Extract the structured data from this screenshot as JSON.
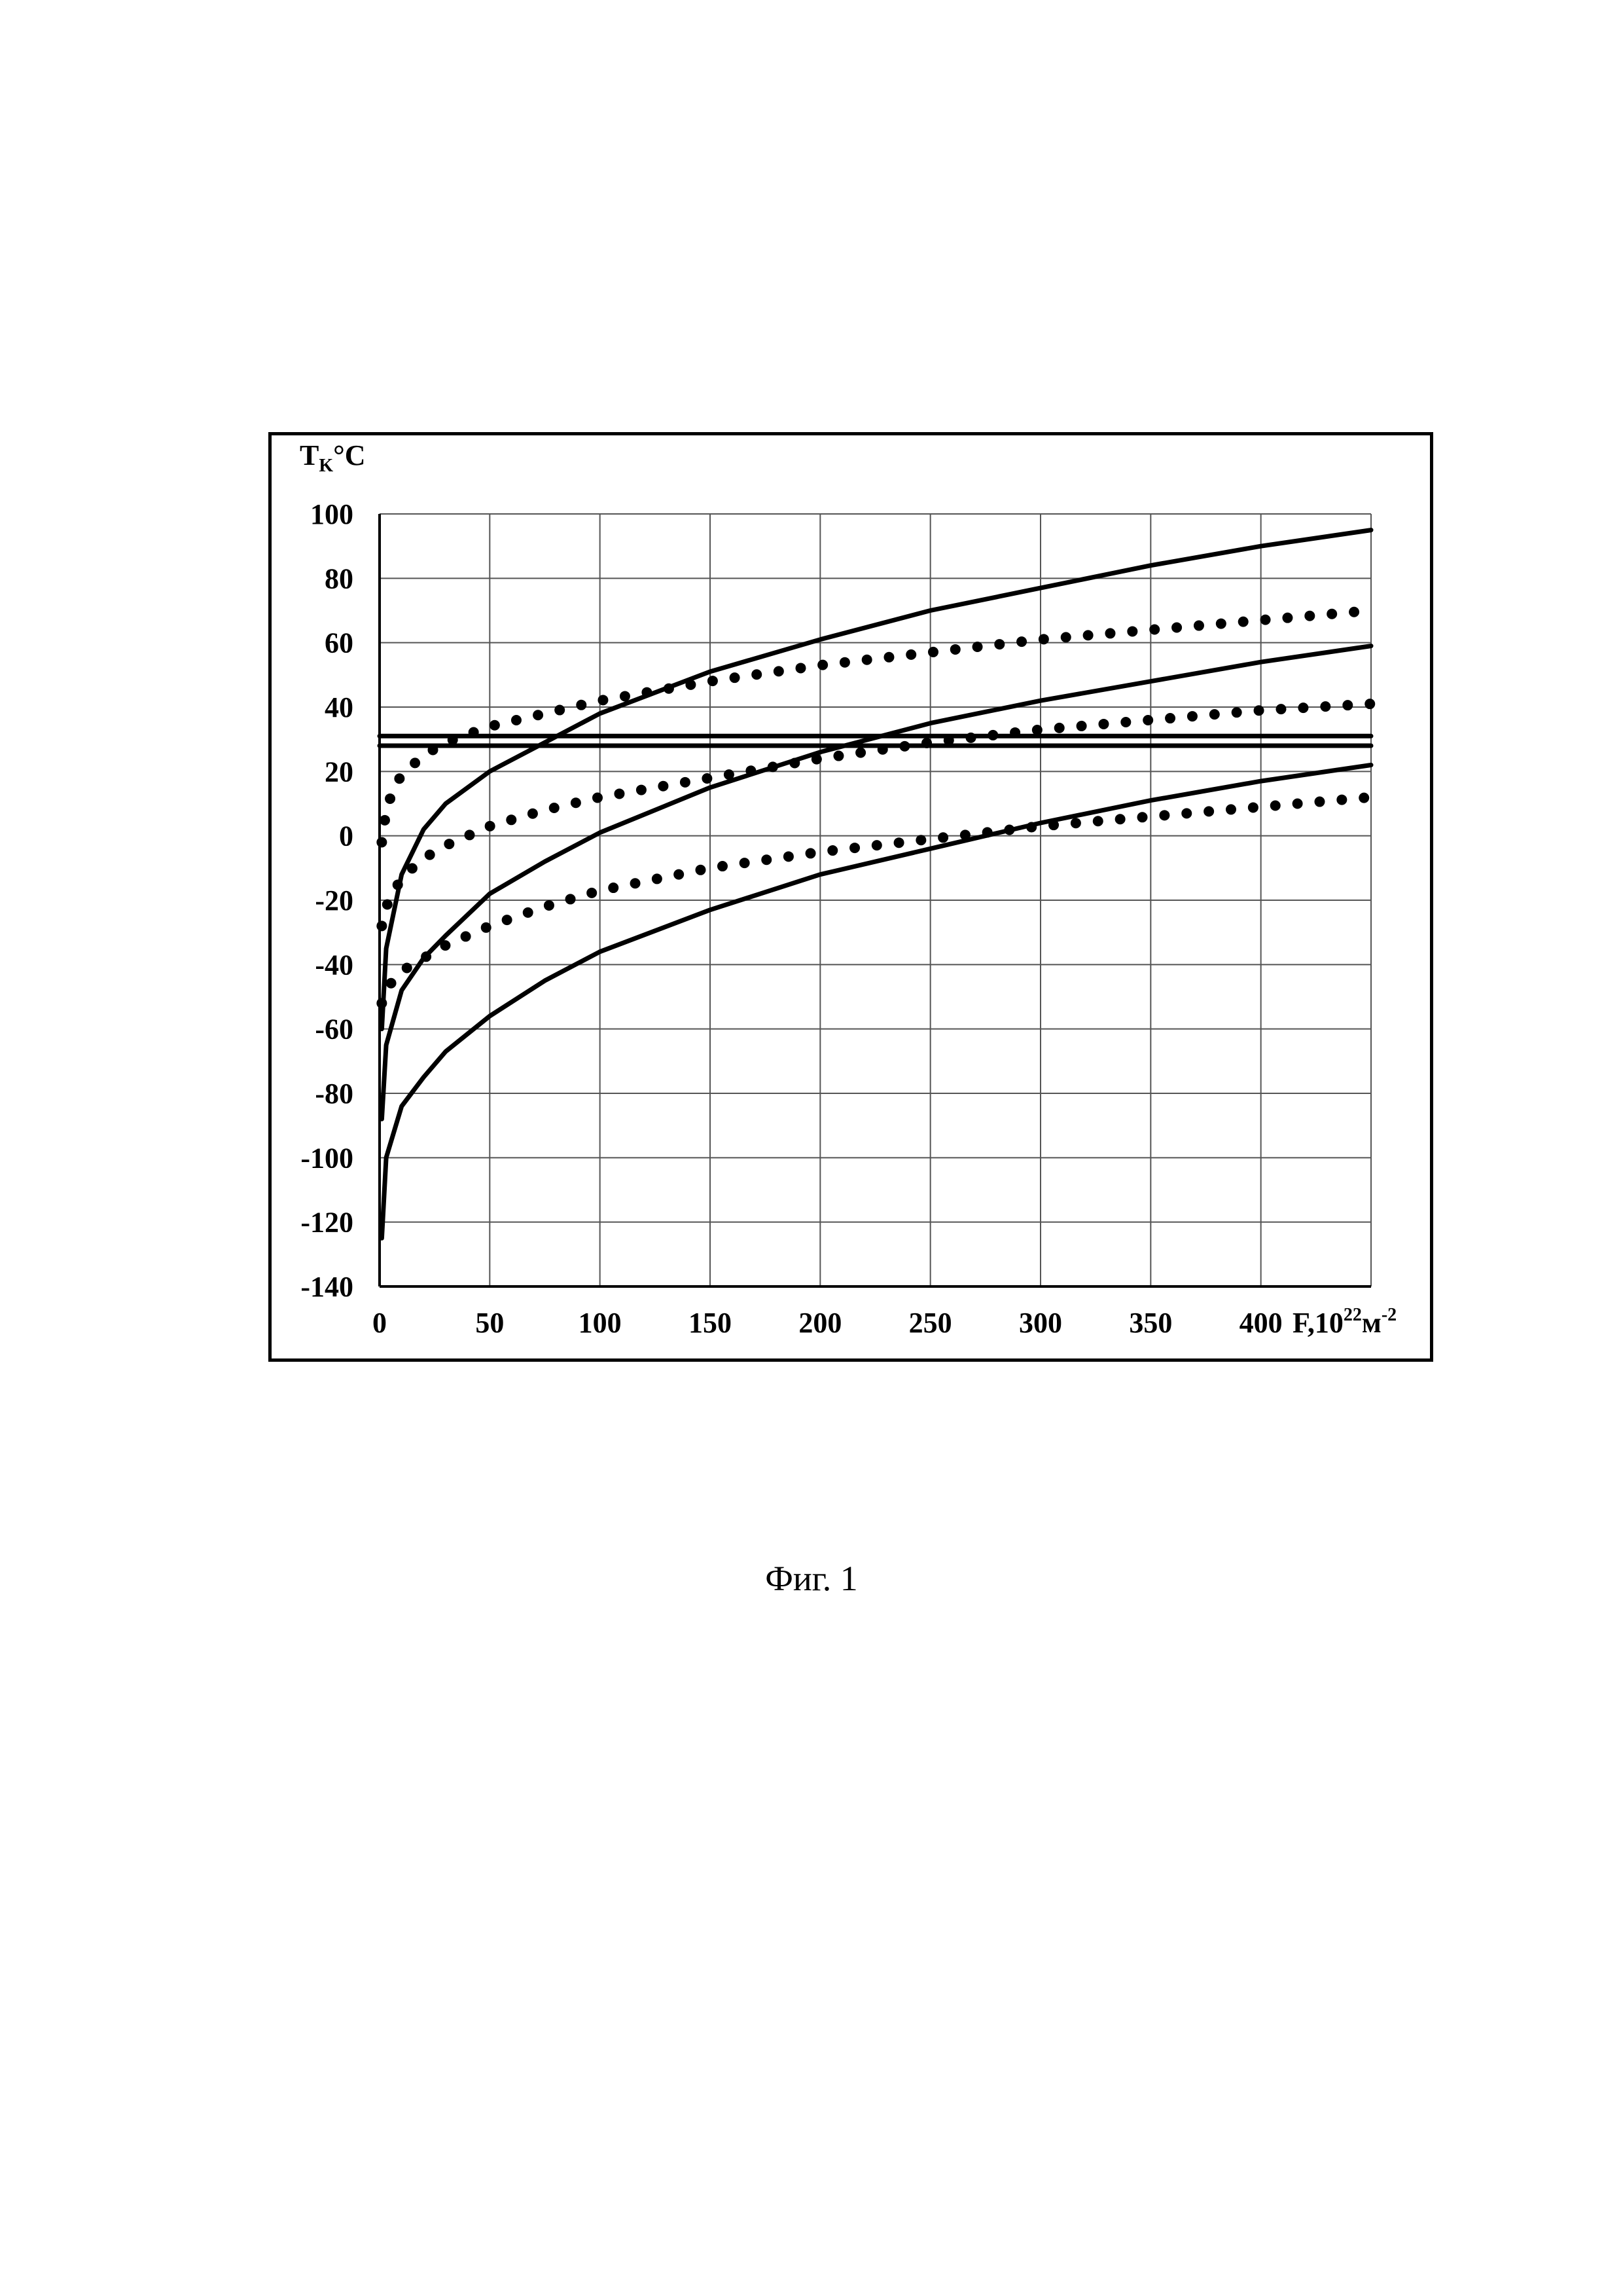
{
  "chart_data": {
    "type": "line",
    "ylabel": {
      "main": "T",
      "sub": "K",
      "suffix": "°C"
    },
    "xlabel": {
      "main": "F,10",
      "sup": "22",
      "unit": "м",
      "unit_sup": "-2"
    },
    "xlim": [
      0,
      450
    ],
    "ylim": [
      -140,
      100
    ],
    "xticks": [
      0,
      50,
      100,
      150,
      200,
      250,
      300,
      350,
      400
    ],
    "yticks": [
      100,
      80,
      60,
      40,
      20,
      0,
      -20,
      -40,
      -60,
      -80,
      -100,
      -120,
      -140
    ],
    "grid": true,
    "series": [
      {
        "style": "solid",
        "points": [
          [
            1,
            -60
          ],
          [
            3,
            -35
          ],
          [
            10,
            -12
          ],
          [
            20,
            2
          ],
          [
            30,
            10
          ],
          [
            50,
            20
          ],
          [
            75,
            29
          ],
          [
            100,
            38
          ],
          [
            150,
            51
          ],
          [
            200,
            61
          ],
          [
            250,
            70
          ],
          [
            300,
            77
          ],
          [
            350,
            84
          ],
          [
            400,
            90
          ],
          [
            450,
            95
          ]
        ]
      },
      {
        "style": "solid",
        "points": [
          [
            1,
            -88
          ],
          [
            3,
            -65
          ],
          [
            10,
            -48
          ],
          [
            20,
            -38
          ],
          [
            30,
            -31
          ],
          [
            50,
            -18
          ],
          [
            75,
            -8
          ],
          [
            100,
            1
          ],
          [
            150,
            15
          ],
          [
            200,
            26
          ],
          [
            250,
            35
          ],
          [
            300,
            42
          ],
          [
            350,
            48
          ],
          [
            400,
            54
          ],
          [
            450,
            59
          ]
        ]
      },
      {
        "style": "solid",
        "points": [
          [
            1,
            -125
          ],
          [
            3,
            -100
          ],
          [
            10,
            -84
          ],
          [
            20,
            -75
          ],
          [
            30,
            -67
          ],
          [
            50,
            -56
          ],
          [
            75,
            -45
          ],
          [
            100,
            -36
          ],
          [
            150,
            -23
          ],
          [
            200,
            -12
          ],
          [
            250,
            -4
          ],
          [
            300,
            4
          ],
          [
            350,
            11
          ],
          [
            400,
            17
          ],
          [
            450,
            22
          ]
        ]
      },
      {
        "style": "dotted",
        "points": [
          [
            1,
            -2
          ],
          [
            3,
            8
          ],
          [
            6,
            14
          ],
          [
            10,
            19
          ],
          [
            20,
            25
          ],
          [
            30,
            29
          ],
          [
            50,
            34
          ],
          [
            75,
            38
          ],
          [
            100,
            42
          ],
          [
            150,
            48
          ],
          [
            200,
            53
          ],
          [
            250,
            57
          ],
          [
            300,
            61
          ],
          [
            350,
            64
          ],
          [
            400,
            67
          ],
          [
            450,
            70
          ]
        ]
      },
      {
        "style": "dotted",
        "points": [
          [
            1,
            -28
          ],
          [
            3,
            -22
          ],
          [
            6,
            -18
          ],
          [
            10,
            -13
          ],
          [
            20,
            -7
          ],
          [
            30,
            -3
          ],
          [
            50,
            3
          ],
          [
            75,
            8
          ],
          [
            100,
            12
          ],
          [
            150,
            18
          ],
          [
            200,
            24
          ],
          [
            250,
            29
          ],
          [
            300,
            33
          ],
          [
            350,
            36
          ],
          [
            400,
            39
          ],
          [
            450,
            41
          ]
        ]
      },
      {
        "style": "dotted",
        "points": [
          [
            1,
            -52
          ],
          [
            3,
            -48
          ],
          [
            6,
            -45
          ],
          [
            10,
            -42
          ],
          [
            20,
            -38
          ],
          [
            30,
            -34
          ],
          [
            50,
            -28
          ],
          [
            75,
            -22
          ],
          [
            100,
            -17
          ],
          [
            150,
            -10
          ],
          [
            200,
            -5
          ],
          [
            250,
            -1
          ],
          [
            300,
            3
          ],
          [
            350,
            6
          ],
          [
            400,
            9
          ],
          [
            450,
            12
          ]
        ]
      },
      {
        "style": "solid",
        "points": [
          [
            0,
            31
          ],
          [
            450,
            31
          ]
        ]
      },
      {
        "style": "solid",
        "points": [
          [
            0,
            28
          ],
          [
            450,
            28
          ]
        ]
      }
    ]
  },
  "caption": "Фиг. 1"
}
